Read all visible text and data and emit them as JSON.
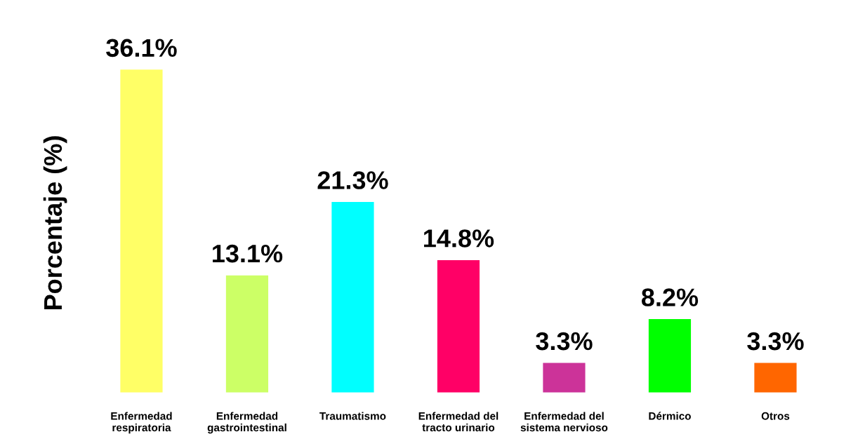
{
  "chart_data": {
    "type": "bar",
    "ylabel": "Porcentaje (%)",
    "categories": [
      "Enfermedad\nrespiratoria",
      "Enfermedad\ngastrointestinal",
      "Traumatismo",
      "Enfermedad del\ntracto urinario",
      "Enfermedad del\nsistema nervioso",
      "Dérmico",
      "Otros"
    ],
    "values": [
      36.1,
      13.1,
      21.3,
      14.8,
      3.3,
      8.2,
      3.3
    ],
    "value_labels": [
      "36.1%",
      "13.1%",
      "21.3%",
      "14.8%",
      "3.3%",
      "8.2%",
      "3.3%"
    ],
    "colors": [
      "#ffff66",
      "#ccff66",
      "#00ffff",
      "#ff0066",
      "#cc3399",
      "#00ff00",
      "#ff6600"
    ],
    "grid": false,
    "legend": false
  }
}
